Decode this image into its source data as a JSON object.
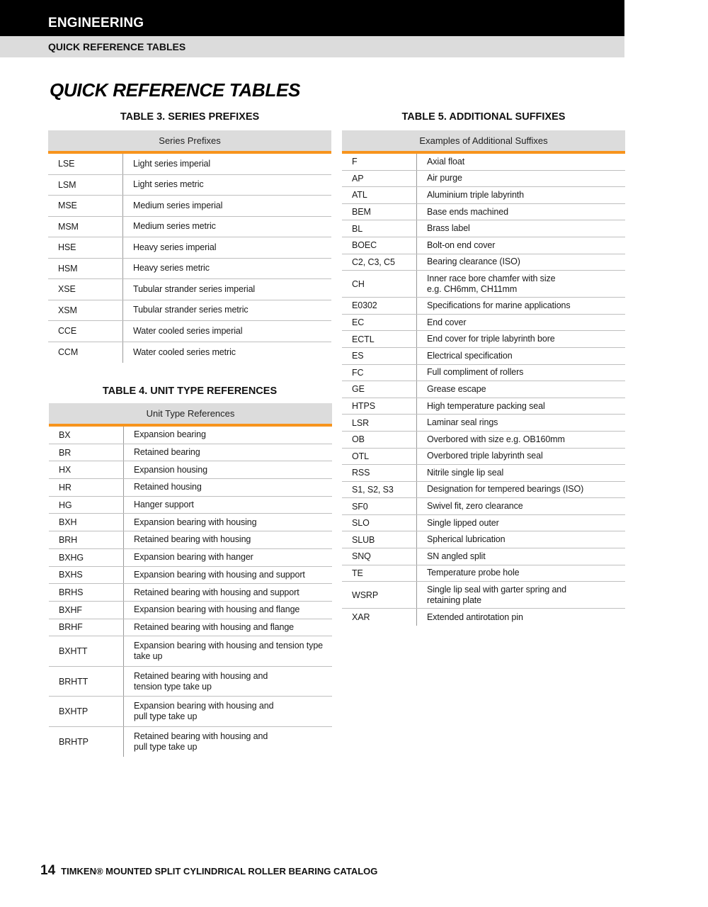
{
  "header": {
    "section": "ENGINEERING",
    "subsection": "QUICK REFERENCE TABLES"
  },
  "page_title": "QUICK REFERENCE TABLES",
  "colors": {
    "accent": "#f7941d",
    "header_bg": "#000000",
    "subheader_bg": "#dcdcdc"
  },
  "table3": {
    "caption": "TABLE 3. SERIES PREFIXES",
    "header": "Series Prefixes",
    "rows": [
      {
        "code": "LSE",
        "desc": "Light series imperial"
      },
      {
        "code": "LSM",
        "desc": "Light series metric"
      },
      {
        "code": "MSE",
        "desc": "Medium series imperial"
      },
      {
        "code": "MSM",
        "desc": "Medium series metric"
      },
      {
        "code": "HSE",
        "desc": "Heavy series imperial"
      },
      {
        "code": "HSM",
        "desc": "Heavy series metric"
      },
      {
        "code": "XSE",
        "desc": "Tubular strander series imperial"
      },
      {
        "code": "XSM",
        "desc": "Tubular strander series metric"
      },
      {
        "code": "CCE",
        "desc": "Water cooled series imperial"
      },
      {
        "code": "CCM",
        "desc": "Water cooled series metric"
      }
    ]
  },
  "table4": {
    "caption": "TABLE 4. UNIT TYPE REFERENCES",
    "header": "Unit Type References",
    "rows": [
      {
        "code": "BX",
        "desc": "Expansion bearing"
      },
      {
        "code": "BR",
        "desc": "Retained bearing"
      },
      {
        "code": "HX",
        "desc": "Expansion housing"
      },
      {
        "code": "HR",
        "desc": "Retained housing"
      },
      {
        "code": "HG",
        "desc": "Hanger support"
      },
      {
        "code": "BXH",
        "desc": "Expansion bearing with housing"
      },
      {
        "code": "BRH",
        "desc": "Retained bearing with housing"
      },
      {
        "code": "BXHG",
        "desc": "Expansion bearing with hanger"
      },
      {
        "code": "BXHS",
        "desc": "Expansion bearing with housing and support"
      },
      {
        "code": "BRHS",
        "desc": "Retained bearing with housing and support"
      },
      {
        "code": "BXHF",
        "desc": "Expansion bearing with housing and flange"
      },
      {
        "code": "BRHF",
        "desc": "Retained bearing with housing and flange"
      },
      {
        "code": "BXHTT",
        "desc": "Expansion bearing with housing and tension type\ntake up"
      },
      {
        "code": "BRHTT",
        "desc": "Retained bearing with housing and\ntension type take up"
      },
      {
        "code": "BXHTP",
        "desc": "Expansion bearing with housing and\npull type take up"
      },
      {
        "code": "BRHTP",
        "desc": "Retained bearing with housing and\npull type take up"
      }
    ]
  },
  "table5": {
    "caption": "TABLE 5. ADDITIONAL SUFFIXES",
    "header": "Examples of Additional Suffixes",
    "rows": [
      {
        "code": "F",
        "desc": "Axial float"
      },
      {
        "code": "AP",
        "desc": "Air purge"
      },
      {
        "code": "ATL",
        "desc": "Aluminium triple labyrinth"
      },
      {
        "code": "BEM",
        "desc": "Base ends machined"
      },
      {
        "code": "BL",
        "desc": "Brass label"
      },
      {
        "code": "BOEC",
        "desc": "Bolt-on end cover"
      },
      {
        "code": "C2, C3, C5",
        "desc": "Bearing clearance (ISO)"
      },
      {
        "code": "CH",
        "desc": "Inner race bore chamfer with size\ne.g. CH6mm, CH11mm"
      },
      {
        "code": "E0302",
        "desc": "Specifications for marine applications"
      },
      {
        "code": "EC",
        "desc": "End cover"
      },
      {
        "code": "ECTL",
        "desc": "End cover for triple labyrinth bore"
      },
      {
        "code": "ES",
        "desc": "Electrical specification"
      },
      {
        "code": "FC",
        "desc": "Full compliment of rollers"
      },
      {
        "code": "GE",
        "desc": "Grease escape"
      },
      {
        "code": "HTPS",
        "desc": "High temperature packing seal"
      },
      {
        "code": "LSR",
        "desc": "Laminar seal rings"
      },
      {
        "code": "OB",
        "desc": "Overbored with size e.g. OB160mm"
      },
      {
        "code": "OTL",
        "desc": "Overbored triple labyrinth seal"
      },
      {
        "code": "RSS",
        "desc": "Nitrile single lip seal"
      },
      {
        "code": "S1, S2, S3",
        "desc": "Designation for tempered bearings (ISO)"
      },
      {
        "code": "SF0",
        "desc": "Swivel fit, zero clearance"
      },
      {
        "code": "SLO",
        "desc": "Single lipped outer"
      },
      {
        "code": "SLUB",
        "desc": "Spherical lubrication"
      },
      {
        "code": "SNQ",
        "desc": "SN angled split"
      },
      {
        "code": "TE",
        "desc": "Temperature probe hole"
      },
      {
        "code": "WSRP",
        "desc": "Single lip seal with garter spring and\nretaining plate"
      },
      {
        "code": "XAR",
        "desc": "Extended antirotation pin"
      }
    ]
  },
  "footer": {
    "page_number": "14",
    "catalog": "TIMKEN® MOUNTED SPLIT CYLINDRICAL ROLLER BEARING CATALOG"
  }
}
